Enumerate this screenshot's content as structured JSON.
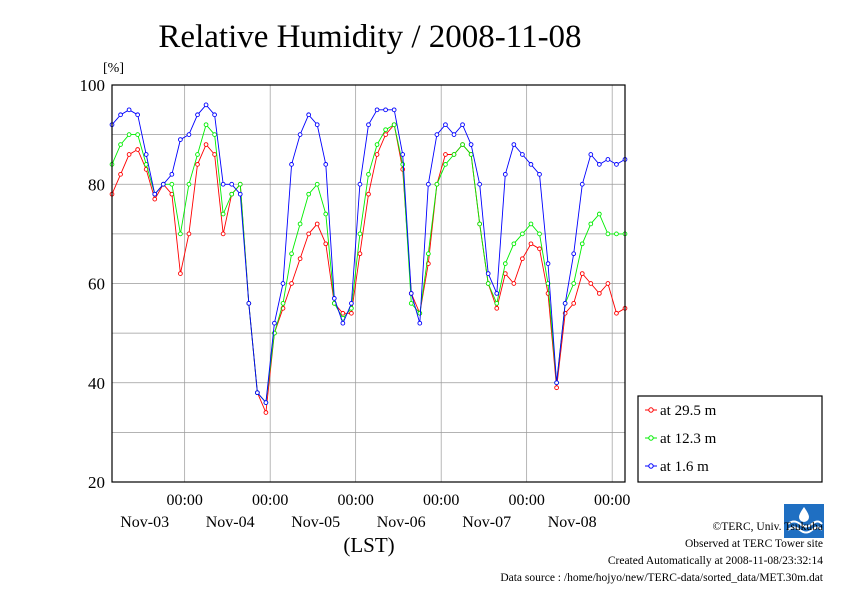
{
  "chart_data": {
    "type": "line",
    "title": "Relative Humidity / 2008-11-08",
    "ylabel": "[%]",
    "xlabel": "(LST)",
    "ylim": [
      20,
      100
    ],
    "yticks": [
      20,
      40,
      60,
      80,
      100
    ],
    "x_unit": "days since start of Nov-02 (LST)",
    "xlim": [
      1.15,
      7.15
    ],
    "x_ticks": [
      {
        "x": 2,
        "time": "00:00",
        "date": "Nov-03"
      },
      {
        "x": 3,
        "time": "00:00",
        "date": "Nov-04"
      },
      {
        "x": 4,
        "time": "00:00",
        "date": "Nov-05"
      },
      {
        "x": 5,
        "time": "00:00",
        "date": "Nov-06"
      },
      {
        "x": 6,
        "time": "00:00",
        "date": "Nov-07"
      },
      {
        "x": 7,
        "time": "00:00",
        "date": "Nov-08"
      }
    ],
    "grid": true,
    "legend_position": "bottom-right, outside plot",
    "x": [
      1.15,
      1.25,
      1.35,
      1.45,
      1.55,
      1.65,
      1.75,
      1.85,
      1.95,
      2.05,
      2.15,
      2.25,
      2.35,
      2.45,
      2.55,
      2.65,
      2.75,
      2.85,
      2.95,
      3.05,
      3.15,
      3.25,
      3.35,
      3.45,
      3.55,
      3.65,
      3.75,
      3.85,
      3.95,
      4.05,
      4.15,
      4.25,
      4.35,
      4.45,
      4.55,
      4.65,
      4.75,
      4.85,
      4.95,
      5.05,
      5.15,
      5.25,
      5.35,
      5.45,
      5.55,
      5.65,
      5.75,
      5.85,
      5.95,
      6.05,
      6.15,
      6.25,
      6.35,
      6.45,
      6.55,
      6.65,
      6.75,
      6.85,
      6.95,
      7.05,
      7.15
    ],
    "series": [
      {
        "name": "at 29.5 m",
        "color": "#ff0000",
        "values": [
          78,
          82,
          86,
          87,
          83,
          77,
          80,
          78,
          62,
          70,
          84,
          88,
          86,
          70,
          78,
          80,
          56,
          38,
          34,
          50,
          55,
          60,
          65,
          70,
          72,
          68,
          56,
          54,
          54,
          66,
          78,
          86,
          90,
          92,
          83,
          58,
          54,
          64,
          80,
          86,
          86,
          88,
          86,
          72,
          60,
          55,
          62,
          60,
          65,
          68,
          67,
          58,
          39,
          54,
          56,
          62,
          60,
          58,
          60,
          54,
          55
        ]
      },
      {
        "name": "at 12.3 m",
        "color": "#00ee00",
        "values": [
          84,
          88,
          90,
          90,
          84,
          78,
          80,
          80,
          70,
          80,
          86,
          92,
          90,
          74,
          78,
          80,
          56,
          38,
          36,
          50,
          56,
          66,
          72,
          78,
          80,
          74,
          56,
          53,
          55,
          70,
          82,
          88,
          91,
          92,
          84,
          56,
          54,
          66,
          80,
          84,
          86,
          88,
          86,
          72,
          60,
          56,
          64,
          68,
          70,
          72,
          70,
          60,
          40,
          56,
          60,
          68,
          72,
          74,
          70,
          70,
          70
        ]
      },
      {
        "name": "at 1.6 m",
        "color": "#0000ff",
        "values": [
          92,
          94,
          95,
          94,
          86,
          78,
          80,
          82,
          89,
          90,
          94,
          96,
          94,
          80,
          80,
          78,
          56,
          38,
          36,
          52,
          60,
          84,
          90,
          94,
          92,
          84,
          57,
          52,
          56,
          80,
          92,
          95,
          95,
          95,
          86,
          58,
          52,
          80,
          90,
          92,
          90,
          92,
          88,
          80,
          62,
          58,
          82,
          88,
          86,
          84,
          82,
          64,
          40,
          56,
          66,
          80,
          86,
          84,
          85,
          84,
          85
        ]
      }
    ]
  },
  "credits": {
    "copyright": "©TERC, Univ. Tsukuba",
    "observed": "Observed at TERC Tower site",
    "created": "Created Automatically at 2008-11-08/23:32:14",
    "source": "Data source : /home/hojyo/new/TERC-data/sorted_data/MET.30m.dat",
    "logo_text": "TERC"
  }
}
